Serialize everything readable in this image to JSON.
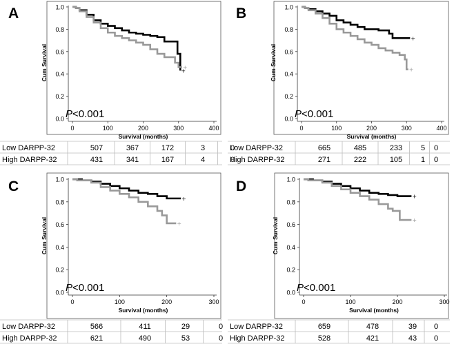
{
  "figure": {
    "panels": [
      {
        "label": "A",
        "pvalue": "<0.001",
        "p_letter": "P",
        "xlabel": "Survival (months)",
        "ylabel": "Cum Survival",
        "xticks": [
          0,
          100,
          200,
          300,
          400
        ],
        "xlim": [
          0,
          400
        ],
        "yticks": [
          "0.0",
          "0.2",
          "0.4",
          "0.6",
          "0.8",
          "1.0"
        ],
        "ylim": [
          0,
          1.0
        ],
        "table": [
          {
            "group": "Low DARPP-32",
            "counts": [
              "507",
              "367",
              "172",
              "3",
              "0"
            ]
          },
          {
            "group": "High DARPP-32",
            "counts": [
              "431",
              "341",
              "167",
              "4",
              "0"
            ]
          }
        ]
      },
      {
        "label": "B",
        "pvalue": "<0.001",
        "p_letter": "P",
        "xlabel": "Survival (months)",
        "ylabel": "Cum Survival",
        "xticks": [
          0,
          100,
          200,
          300,
          400
        ],
        "xlim": [
          0,
          400
        ],
        "yticks": [
          "0.0",
          "0.2",
          "0.4",
          "0.6",
          "0.8",
          "1.0"
        ],
        "ylim": [
          0,
          1.0
        ],
        "table": [
          {
            "group": "Low DARPP-32",
            "counts": [
              "665",
              "485",
              "233",
              "5",
              "0"
            ]
          },
          {
            "group": "High DARPP-32",
            "counts": [
              "271",
              "222",
              "105",
              "1",
              "0"
            ]
          }
        ]
      },
      {
        "label": "C",
        "pvalue": "<0.001",
        "p_letter": "P",
        "xlabel": "Survival (months)",
        "ylabel": "Cum Survival",
        "xticks": [
          0,
          100,
          200,
          300
        ],
        "xlim": [
          0,
          300
        ],
        "yticks": [
          "0.0",
          "0.2",
          "0.4",
          "0.6",
          "0.8",
          "1.0"
        ],
        "ylim": [
          0,
          1.0
        ],
        "table": [
          {
            "group": "Low DARPP-32",
            "counts": [
              "566",
              "411",
              "29",
              "0"
            ]
          },
          {
            "group": "High DARPP-32",
            "counts": [
              "621",
              "490",
              "53",
              "0"
            ]
          }
        ]
      },
      {
        "label": "D",
        "pvalue": "<0.001",
        "p_letter": "P",
        "xlabel": "Survival (months)",
        "ylabel": "Cum Survival",
        "xticks": [
          0,
          100,
          200,
          300
        ],
        "xlim": [
          0,
          300
        ],
        "yticks": [
          "0.0",
          "0.2",
          "0.4",
          "0.6",
          "0.8",
          "1.0"
        ],
        "ylim": [
          0,
          1.0
        ],
        "table": [
          {
            "group": "Low DARPP-32",
            "counts": [
              "659",
              "478",
              "39",
              "0"
            ]
          },
          {
            "group": "High DARPP-32",
            "counts": [
              "528",
              "421",
              "43",
              "0"
            ]
          }
        ]
      }
    ]
  },
  "chart_data": [
    {
      "type": "line",
      "title": "A",
      "xlabel": "Survival (months)",
      "ylabel": "Cum Survival",
      "xlim": [
        0,
        400
      ],
      "ylim": [
        0,
        1.0
      ],
      "series": [
        {
          "name": "Low DARPP-32",
          "color": "#000000",
          "x": [
            0,
            10,
            20,
            40,
            60,
            80,
            100,
            120,
            140,
            160,
            180,
            200,
            220,
            240,
            260,
            280,
            297,
            297,
            305
          ],
          "y": [
            1.0,
            0.99,
            0.97,
            0.93,
            0.88,
            0.85,
            0.83,
            0.81,
            0.79,
            0.77,
            0.76,
            0.75,
            0.74,
            0.73,
            0.69,
            0.69,
            0.69,
            0.58,
            0.43
          ]
        },
        {
          "name": "High DARPP-32",
          "color": "#999999",
          "x": [
            0,
            10,
            20,
            40,
            60,
            80,
            100,
            120,
            140,
            160,
            180,
            200,
            220,
            240,
            260,
            280,
            290,
            300,
            310
          ],
          "y": [
            1.0,
            0.99,
            0.96,
            0.91,
            0.86,
            0.81,
            0.77,
            0.74,
            0.72,
            0.7,
            0.68,
            0.66,
            0.62,
            0.58,
            0.55,
            0.55,
            0.5,
            0.46,
            0.46
          ]
        }
      ]
    },
    {
      "type": "line",
      "title": "B",
      "xlabel": "Survival (months)",
      "ylabel": "Cum Survival",
      "xlim": [
        0,
        400
      ],
      "ylim": [
        0,
        1.0
      ],
      "series": [
        {
          "name": "Low DARPP-32",
          "color": "#000000",
          "x": [
            0,
            10,
            20,
            40,
            60,
            80,
            100,
            120,
            140,
            160,
            180,
            200,
            220,
            240,
            250,
            260,
            280,
            310
          ],
          "y": [
            1.0,
            0.99,
            0.98,
            0.96,
            0.94,
            0.92,
            0.88,
            0.86,
            0.84,
            0.82,
            0.8,
            0.8,
            0.79,
            0.79,
            0.76,
            0.72,
            0.72,
            0.72
          ]
        },
        {
          "name": "High DARPP-32",
          "color": "#999999",
          "x": [
            0,
            10,
            20,
            40,
            60,
            80,
            100,
            120,
            140,
            160,
            180,
            200,
            220,
            240,
            260,
            280,
            295,
            300,
            305
          ],
          "y": [
            1.0,
            0.99,
            0.97,
            0.94,
            0.9,
            0.85,
            0.8,
            0.77,
            0.74,
            0.71,
            0.68,
            0.66,
            0.63,
            0.61,
            0.59,
            0.57,
            0.53,
            0.44,
            0.44
          ]
        }
      ]
    },
    {
      "type": "line",
      "title": "C",
      "xlabel": "Survival (months)",
      "ylabel": "Cum Survival",
      "xlim": [
        0,
        300
      ],
      "ylim": [
        0,
        1.0
      ],
      "series": [
        {
          "name": "Low DARPP-32",
          "color": "#000000",
          "x": [
            0,
            10,
            20,
            40,
            60,
            80,
            100,
            120,
            140,
            160,
            180,
            200,
            230
          ],
          "y": [
            1.0,
            1.0,
            0.99,
            0.98,
            0.96,
            0.94,
            0.92,
            0.9,
            0.88,
            0.87,
            0.85,
            0.83,
            0.83
          ]
        },
        {
          "name": "High DARPP-32",
          "color": "#999999",
          "x": [
            0,
            10,
            20,
            40,
            60,
            80,
            100,
            120,
            140,
            160,
            180,
            190,
            200,
            220
          ],
          "y": [
            1.0,
            0.99,
            0.99,
            0.97,
            0.93,
            0.9,
            0.87,
            0.84,
            0.8,
            0.76,
            0.72,
            0.68,
            0.61,
            0.61
          ]
        }
      ]
    },
    {
      "type": "line",
      "title": "D",
      "xlabel": "Survival (months)",
      "ylabel": "Cum Survival",
      "xlim": [
        0,
        300
      ],
      "ylim": [
        0,
        1.0
      ],
      "series": [
        {
          "name": "Low DARPP-32",
          "color": "#000000",
          "x": [
            0,
            10,
            20,
            40,
            60,
            80,
            100,
            120,
            140,
            160,
            180,
            200,
            230
          ],
          "y": [
            1.0,
            1.0,
            0.99,
            0.98,
            0.96,
            0.94,
            0.92,
            0.9,
            0.88,
            0.87,
            0.86,
            0.85,
            0.85
          ]
        },
        {
          "name": "High DARPP-32",
          "color": "#999999",
          "x": [
            0,
            10,
            20,
            40,
            60,
            80,
            100,
            120,
            140,
            160,
            180,
            190,
            205,
            230
          ],
          "y": [
            1.0,
            0.99,
            0.99,
            0.97,
            0.94,
            0.91,
            0.88,
            0.85,
            0.82,
            0.78,
            0.74,
            0.72,
            0.64,
            0.64
          ]
        }
      ]
    }
  ]
}
